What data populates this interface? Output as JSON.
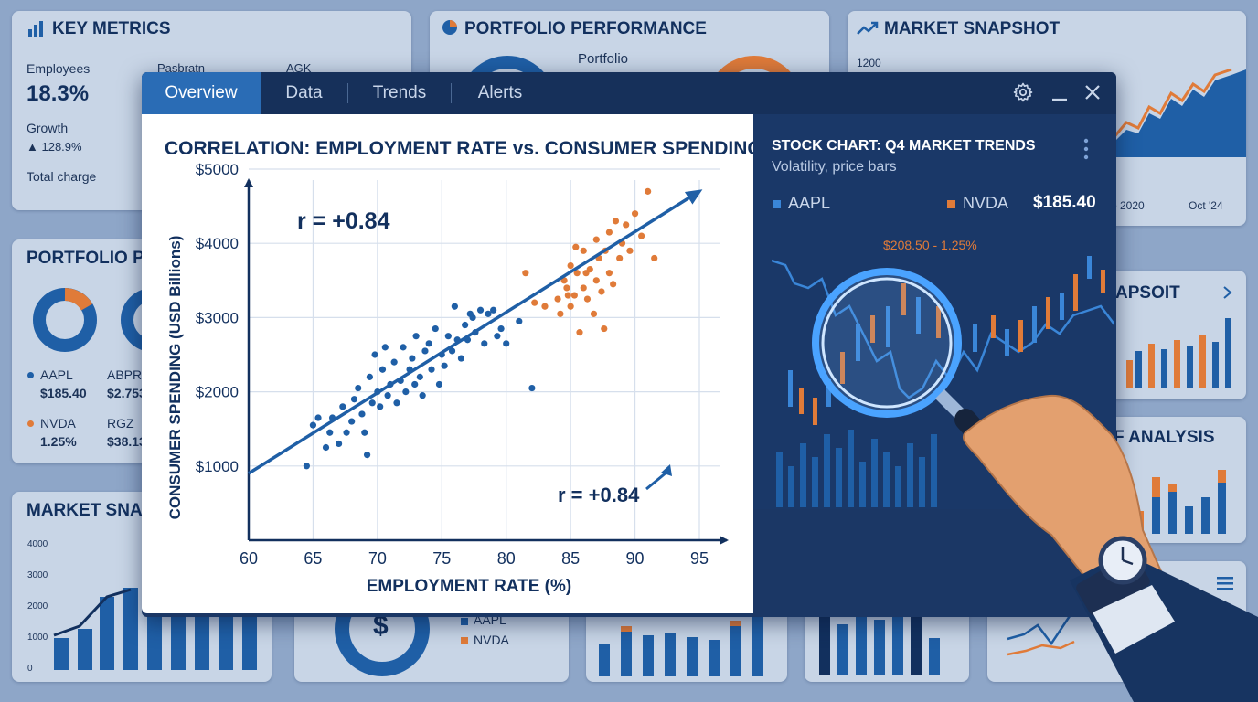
{
  "key_metrics": {
    "title": "KEY METRICS",
    "employees_label": "Employees",
    "employees_value": "18.3%",
    "growth_label": "Growth",
    "growth_value": "▲ 128.9%",
    "total_label": "Total charge",
    "col2_label": "Pasbratn",
    "col3_label": "AGK"
  },
  "portfolio_top": {
    "title": "PORTFOLIO PERFORMANCE",
    "subtitle": "Portfolio"
  },
  "market_top": {
    "title": "MARKET SNAPSHOT",
    "axis_1200": "1200",
    "date_1": "p 2020",
    "date_2": "Oct '24"
  },
  "portfolio_left": {
    "title": "PORTFOLIO PERF",
    "aapl_label": "AAPL",
    "aapl_value": "$185.40",
    "abpr_label": "ABPR",
    "abpr_value": "$2.753",
    "nvda_label": "NVDA",
    "nvda_value": "1.25%",
    "rgz_label": "RGZ",
    "rgz_value": "$38.13"
  },
  "market_left": {
    "title": "MARKET SNAPS",
    "axis": [
      "4000",
      "3000",
      "2000",
      "1000",
      "0"
    ]
  },
  "bottom_legend": {
    "aapl": "AAPL",
    "nvda": "NVDA",
    "dollar": "$"
  },
  "right_cards": {
    "snapshot_title": "APSOIT",
    "analysis_title": "F ANALYSIS"
  },
  "window": {
    "tabs": [
      "Overview",
      "Data",
      "Trends",
      "Alerts"
    ],
    "active_tab": 0
  },
  "scatter": {
    "title": "CORRELATION: EMPLOYMENT RATE vs. CONSUMER SPENDING",
    "annotation_1": "r = +0.84",
    "annotation_2": "r = +0.84"
  },
  "stock": {
    "title": "STOCK CHART: Q4 MARKET TRENDS",
    "subtitle": "Volatility, price bars",
    "legend_1": "AAPL",
    "legend_2": "NVDA",
    "price": "$185.40",
    "callout": "$208.50 - 1.25%"
  },
  "colors": {
    "navy": "#12305e",
    "blue": "#1f5fa6",
    "orange": "#e07b39",
    "active_tab": "#2a6cb5"
  },
  "chart_data": {
    "type": "scatter",
    "title": "CORRELATION: EMPLOYMENT RATE vs. CONSUMER SPENDING",
    "xlabel": "EMPLOYMENT RATE (%)",
    "ylabel": "CONSUMER SPENDING (USD Billions)",
    "xlim": [
      60,
      95
    ],
    "ylim": [
      0,
      5000
    ],
    "x_ticks": [
      60,
      65,
      70,
      75,
      80,
      85,
      90,
      95
    ],
    "x_tick_labels": [
      "60",
      "65",
      "70",
      "75",
      "80",
      "85",
      "90",
      "95"
    ],
    "y_ticks": [
      1000,
      2000,
      3000,
      4000,
      5000
    ],
    "y_tick_labels": [
      "$1000",
      "$2000",
      "$3000",
      "$4000",
      "$5000"
    ],
    "grid": true,
    "trend_line": {
      "x": [
        60,
        95
      ],
      "y": [
        900,
        4700
      ]
    },
    "series": [
      {
        "color": "#1f5fa6",
        "points": [
          [
            64.5,
            1000
          ],
          [
            65,
            1550
          ],
          [
            65.4,
            1650
          ],
          [
            66,
            1250
          ],
          [
            66.3,
            1450
          ],
          [
            66.5,
            1650
          ],
          [
            67,
            1300
          ],
          [
            67.3,
            1800
          ],
          [
            67.6,
            1450
          ],
          [
            68,
            1600
          ],
          [
            68.2,
            1900
          ],
          [
            68.5,
            2050
          ],
          [
            68.8,
            1700
          ],
          [
            69,
            1450
          ],
          [
            69.2,
            1150
          ],
          [
            69.4,
            2200
          ],
          [
            69.6,
            1850
          ],
          [
            69.8,
            2500
          ],
          [
            70,
            2000
          ],
          [
            70.2,
            1800
          ],
          [
            70.4,
            2300
          ],
          [
            70.6,
            2600
          ],
          [
            70.8,
            1950
          ],
          [
            71,
            2100
          ],
          [
            71.3,
            2400
          ],
          [
            71.5,
            1850
          ],
          [
            71.8,
            2150
          ],
          [
            72,
            2600
          ],
          [
            72.2,
            2000
          ],
          [
            72.5,
            2300
          ],
          [
            72.7,
            2450
          ],
          [
            72.9,
            2100
          ],
          [
            73,
            2750
          ],
          [
            73.3,
            2200
          ],
          [
            73.5,
            1950
          ],
          [
            73.7,
            2550
          ],
          [
            74,
            2650
          ],
          [
            74.2,
            2300
          ],
          [
            74.5,
            2850
          ],
          [
            74.8,
            2100
          ],
          [
            75,
            2500
          ],
          [
            75.2,
            2350
          ],
          [
            75.5,
            2750
          ],
          [
            75.8,
            2550
          ],
          [
            76,
            3150
          ],
          [
            76.2,
            2700
          ],
          [
            76.5,
            2450
          ],
          [
            76.8,
            2900
          ],
          [
            77,
            2700
          ],
          [
            77.2,
            3050
          ],
          [
            77.4,
            3000
          ],
          [
            77.6,
            2800
          ],
          [
            78,
            3100
          ],
          [
            78.3,
            2650
          ],
          [
            78.6,
            3050
          ],
          [
            79,
            3100
          ],
          [
            79.3,
            2750
          ],
          [
            79.6,
            2850
          ],
          [
            80,
            2650
          ],
          [
            81,
            2950
          ],
          [
            82,
            2050
          ]
        ]
      },
      {
        "color": "#e07b39",
        "points": [
          [
            81.5,
            3600
          ],
          [
            82.2,
            3200
          ],
          [
            83,
            3150
          ],
          [
            84,
            3250
          ],
          [
            84.2,
            3050
          ],
          [
            84.5,
            3500
          ],
          [
            84.7,
            3400
          ],
          [
            85,
            3700
          ],
          [
            85,
            3150
          ],
          [
            85.3,
            3300
          ],
          [
            85.5,
            3600
          ],
          [
            85.7,
            2800
          ],
          [
            86,
            3900
          ],
          [
            86,
            3400
          ],
          [
            86.3,
            3250
          ],
          [
            86.5,
            3650
          ],
          [
            86.8,
            3050
          ],
          [
            87,
            4050
          ],
          [
            87,
            3500
          ],
          [
            87.2,
            3800
          ],
          [
            87.4,
            3350
          ],
          [
            87.7,
            3900
          ],
          [
            88,
            3600
          ],
          [
            88,
            4150
          ],
          [
            88.3,
            3450
          ],
          [
            88.5,
            4300
          ],
          [
            88.8,
            3800
          ],
          [
            89,
            4000
          ],
          [
            89.3,
            4250
          ],
          [
            89.6,
            3900
          ],
          [
            90,
            4400
          ],
          [
            90.5,
            4100
          ],
          [
            91,
            4700
          ],
          [
            91.5,
            3800
          ],
          [
            86.2,
            3600
          ],
          [
            87.6,
            2850
          ],
          [
            85.4,
            3950
          ],
          [
            84.8,
            3300
          ]
        ]
      }
    ]
  }
}
